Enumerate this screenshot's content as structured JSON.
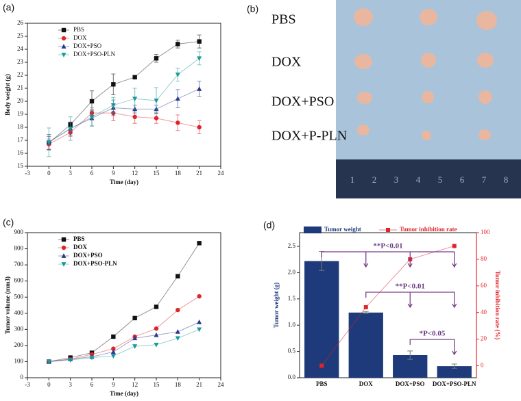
{
  "chart_data": [
    {
      "type": "line",
      "label": "(a)",
      "x_label": "Time (day)",
      "y_label": "Body weight (g)",
      "xlim": [
        -3,
        24
      ],
      "xticks": [
        -3,
        0,
        3,
        6,
        9,
        12,
        15,
        18,
        21,
        24
      ],
      "ylim": [
        15,
        26
      ],
      "yticks": [
        15,
        16,
        17,
        18,
        19,
        20,
        21,
        22,
        23,
        24,
        25,
        26
      ],
      "legend": "top-left",
      "x": [
        0,
        3,
        6,
        9,
        12,
        15,
        18,
        21
      ],
      "series": [
        {
          "name": "PBS",
          "color": "#111111",
          "marker": "square",
          "values": [
            16.8,
            18.2,
            20,
            21.3,
            21.85,
            23.3,
            24.4,
            24.6
          ],
          "errors": [
            0.5,
            0.2,
            0.8,
            0.8,
            0.1,
            0.3,
            0.3,
            0.5
          ]
        },
        {
          "name": "DOX",
          "color": "#e0242b",
          "marker": "circle",
          "values": [
            16.7,
            17.6,
            19.1,
            19.1,
            18.8,
            18.7,
            18.35,
            18
          ],
          "errors": [
            0.4,
            0.3,
            0.3,
            0.6,
            0.5,
            0.4,
            0.6,
            0.5
          ]
        },
        {
          "name": "DOX+PSO",
          "color": "#2a3a8c",
          "marker": "triangle",
          "values": [
            16.85,
            17.9,
            18.7,
            19.5,
            19.4,
            19.4,
            20.2,
            20.95
          ],
          "errors": [
            0.6,
            0.5,
            0.6,
            0.6,
            0.3,
            0.3,
            0.7,
            0.6
          ]
        },
        {
          "name": "DOX+PSO-PLN",
          "color": "#1a9a9a",
          "marker": "triangle-down",
          "values": [
            16.85,
            17.9,
            18.8,
            19.7,
            20.2,
            20.05,
            22.05,
            23.3
          ],
          "errors": [
            1.1,
            0.9,
            0.7,
            0.6,
            0.8,
            1.0,
            0.5,
            0.5
          ]
        }
      ]
    },
    {
      "type": "line",
      "label": "(c)",
      "x_label": "Time (day)",
      "y_label": "Tumor volume (mm3)",
      "xlim": [
        -3,
        24
      ],
      "xticks": [
        -3,
        0,
        3,
        6,
        9,
        12,
        15,
        18,
        21,
        24
      ],
      "ylim": [
        0,
        900
      ],
      "yticks": [
        0,
        100,
        200,
        300,
        400,
        500,
        600,
        700,
        800,
        900
      ],
      "legend": "top-left",
      "x": [
        0,
        3,
        6,
        9,
        12,
        15,
        18,
        21
      ],
      "series": [
        {
          "name": "PBS",
          "color": "#111111",
          "marker": "square",
          "values": [
            100,
            125,
            155,
            255,
            370,
            440,
            630,
            835
          ]
        },
        {
          "name": "DOX",
          "color": "#e0242b",
          "marker": "circle",
          "values": [
            100,
            115,
            145,
            180,
            255,
            305,
            420,
            505
          ]
        },
        {
          "name": "DOX+PSO",
          "color": "#2a3a8c",
          "marker": "triangle",
          "values": [
            100,
            115,
            130,
            160,
            245,
            265,
            285,
            345
          ]
        },
        {
          "name": "DOX+PSO-PLN",
          "color": "#1a9a9a",
          "marker": "triangle-down",
          "values": [
            100,
            110,
            125,
            135,
            195,
            205,
            245,
            300
          ]
        }
      ]
    },
    {
      "type": "bar",
      "label": "(d)",
      "y_label": "Tumor weight (g)",
      "y2_label": "Tumor inhibition rate (%)",
      "categories": [
        "PBS",
        "DOX",
        "DOX+PSO",
        "DOX+PSO-PLN"
      ],
      "ylim": [
        0,
        2.76
      ],
      "yticks": [
        {
          "value": 0,
          "label": "0.0"
        },
        0.5,
        {
          "value": 1,
          "label": "1.0"
        },
        1.5,
        {
          "value": 2,
          "label": "2.0"
        },
        2.5
      ],
      "y2lim": [
        -9,
        100
      ],
      "y2ticks": [
        0,
        20,
        40,
        60,
        80,
        100
      ],
      "series": [
        {
          "name": "Tumor weight",
          "type": "bar",
          "color": "#1f3a7a",
          "values": [
            2.22,
            1.24,
            0.43,
            0.22
          ],
          "errors": [
            0.18,
            0.02,
            0.08,
            0.04
          ]
        },
        {
          "name": "Tumor inhibition rate",
          "type": "line",
          "axis": "y2",
          "color": "#e0242b",
          "values": [
            0,
            44,
            80,
            90
          ]
        }
      ],
      "annotations": [
        "**P<0.01",
        "**P<0.01",
        "*P<0.05"
      ]
    }
  ],
  "photo": {
    "label": "(b)",
    "rows": [
      "PBS",
      "DOX",
      "DOX+PSO",
      "DOX+P-PLN"
    ],
    "ruler": [
      1,
      2,
      3,
      4,
      5,
      6,
      7,
      8
    ]
  }
}
